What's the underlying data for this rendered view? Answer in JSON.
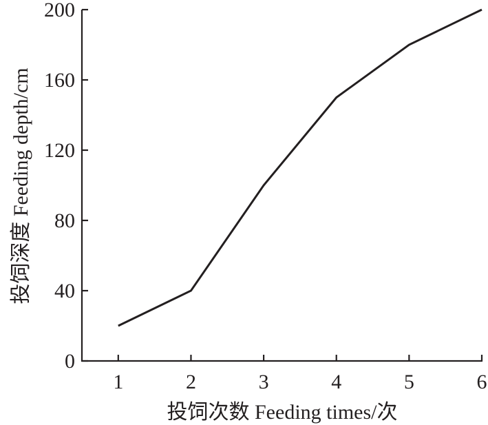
{
  "chart_data": {
    "type": "line",
    "title": "",
    "xlabel": "投饲次数 Feeding times/次",
    "ylabel": "投饲深度 Feeding depth/cm",
    "x": [
      1,
      2,
      3,
      4,
      5,
      6
    ],
    "xticks": [
      "1",
      "2",
      "3",
      "4",
      "5",
      "6"
    ],
    "yticks": [
      "0",
      "40",
      "80",
      "120",
      "160",
      "200"
    ],
    "xlim": [
      0.5,
      6
    ],
    "ylim": [
      0,
      200
    ],
    "grid": false,
    "series": [
      {
        "name": "Feeding depth",
        "values": [
          20,
          40,
          100,
          150,
          180,
          200
        ],
        "color": "#231f20"
      }
    ]
  }
}
